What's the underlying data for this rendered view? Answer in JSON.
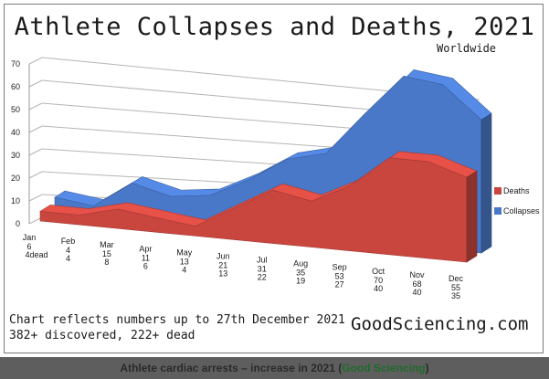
{
  "header": {
    "title": "Athlete Collapses and Deaths, 2021",
    "subtitle": "Worldwide"
  },
  "footer": {
    "note_line1": "Chart reflects numbers up to 27th December 2021",
    "note_line2": "382+ discovered, 222+ dead",
    "brand": "GoodSciencing.com"
  },
  "caption": {
    "text": "Athlete cardiac arrests – increase in 2021 (",
    "link": "Good Sciencing",
    "end": ")"
  },
  "colors": {
    "deaths": "#c9463f",
    "collapses": "#4a78c8"
  },
  "chart_data": {
    "type": "area",
    "title": "Athlete Collapses and Deaths, 2021",
    "subtitle": "Worldwide",
    "categories": [
      "Jan",
      "Feb",
      "Mar",
      "Apr",
      "May",
      "Jun",
      "Jul",
      "Aug",
      "Sep",
      "Oct",
      "Nov",
      "Dec"
    ],
    "value_labels": [
      [
        "6",
        "4dead"
      ],
      [
        "4",
        "4"
      ],
      [
        "15",
        "8"
      ],
      [
        "11",
        "6"
      ],
      [
        "13",
        "4"
      ],
      [
        "21",
        "13"
      ],
      [
        "31",
        "22"
      ],
      [
        "35",
        "19"
      ],
      [
        "53",
        "27"
      ],
      [
        "70",
        "40"
      ],
      [
        "68",
        "40"
      ],
      [
        "55",
        "35"
      ]
    ],
    "series": [
      {
        "name": "Deaths",
        "values": [
          4,
          4,
          8,
          6,
          4,
          13,
          22,
          19,
          27,
          40,
          40,
          35
        ]
      },
      {
        "name": "Collapses",
        "values": [
          6,
          4,
          15,
          11,
          13,
          21,
          31,
          35,
          53,
          70,
          68,
          55
        ]
      }
    ],
    "ylim": [
      0,
      70
    ],
    "yticks": [
      0,
      10,
      20,
      30,
      40,
      50,
      60,
      70
    ],
    "grid": true,
    "legend": "right",
    "style": "3d"
  }
}
